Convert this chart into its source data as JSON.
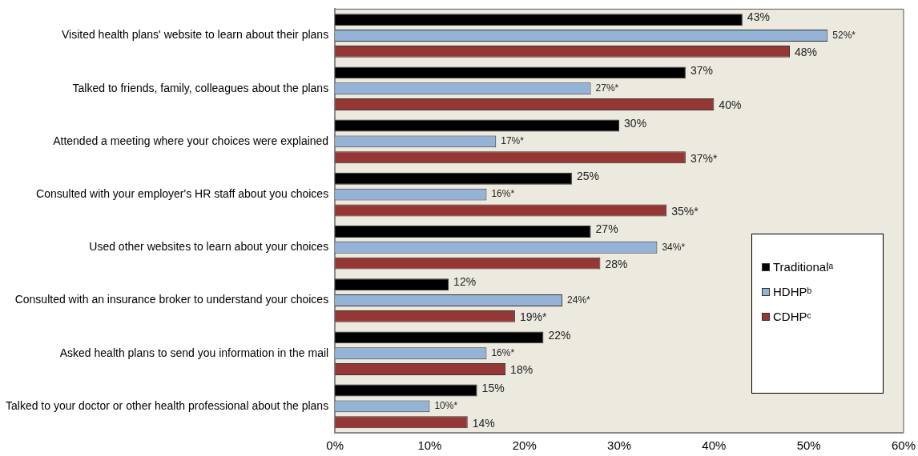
{
  "chart_data": {
    "type": "bar",
    "orientation": "horizontal",
    "categories": [
      "Visited health plans' website to learn about their plans",
      "Talked to friends, family, colleagues about the plans",
      "Attended a meeting where your choices were explained",
      "Consulted with your employer's HR staff about you choices",
      "Used other websites to learn about your choices",
      "Consulted with an insurance broker to understand your choices",
      "Asked health plans to send you information in the mail",
      "Talked to your doctor or other health professional about the plans"
    ],
    "series": [
      {
        "name": "Traditionalᵃ",
        "color": "#000000",
        "values": [
          43,
          37,
          30,
          25,
          27,
          12,
          22,
          15
        ],
        "value_labels": [
          "43%",
          "37%",
          "30%",
          "25%",
          "27%",
          "12%",
          "22%",
          "15%"
        ]
      },
      {
        "name": "HDHPᵇ",
        "color": "#95b3d7",
        "values": [
          52,
          27,
          17,
          16,
          34,
          24,
          16,
          10
        ],
        "value_labels": [
          "52%*",
          "27%*",
          "17%*",
          "16%*",
          "34%*",
          "24%*",
          "16%*",
          "10%*"
        ]
      },
      {
        "name": "CDHPᶜ",
        "color": "#953735",
        "values": [
          48,
          40,
          37,
          35,
          28,
          19,
          18,
          14
        ],
        "value_labels": [
          "48%",
          "40%",
          "37%*",
          "35%*",
          "28%",
          "19%*",
          "18%",
          "14%"
        ]
      }
    ],
    "xlim": [
      0,
      60
    ],
    "xticks": [
      {
        "value": 0,
        "label": "0%"
      },
      {
        "value": 10,
        "label": "10%"
      },
      {
        "value": 20,
        "label": "20%"
      },
      {
        "value": 30,
        "label": "30%"
      },
      {
        "value": 40,
        "label": "40%"
      },
      {
        "value": 50,
        "label": "50%"
      },
      {
        "value": 60,
        "label": "60%"
      }
    ],
    "grid": false,
    "legend": "right"
  }
}
